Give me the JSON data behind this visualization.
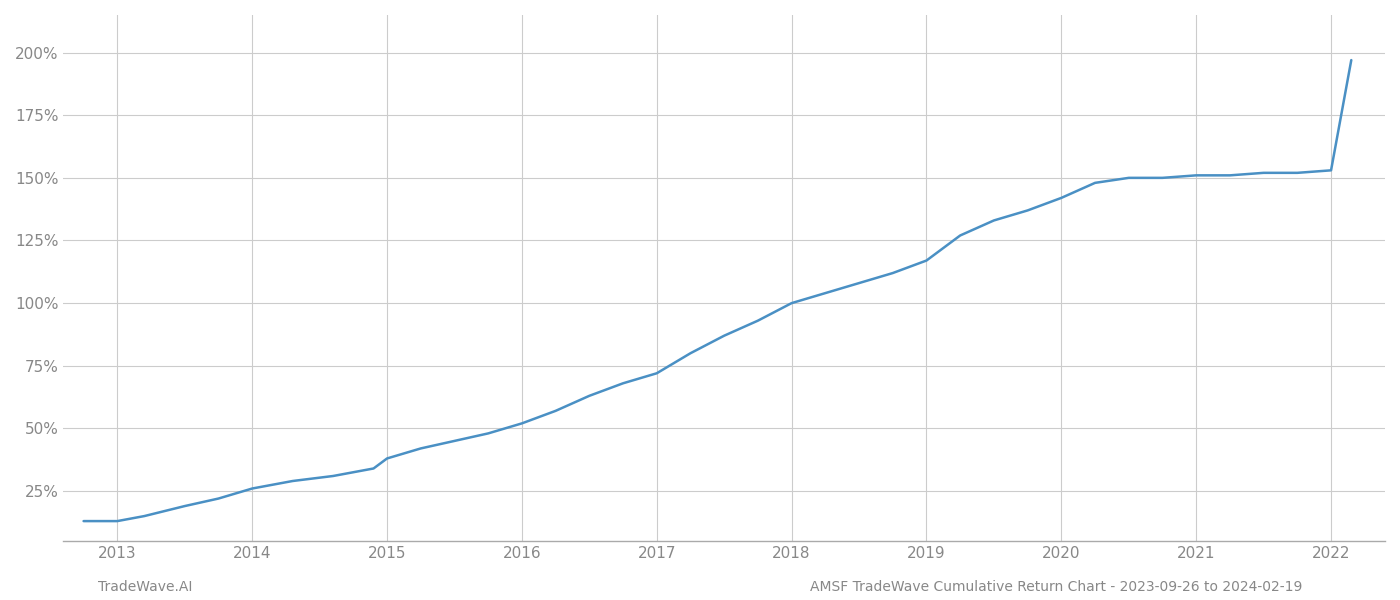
{
  "title": "",
  "footer_left": "TradeWave.AI",
  "footer_right": "AMSF TradeWave Cumulative Return Chart - 2023-09-26 to 2024-02-19",
  "line_color": "#4a90c4",
  "background_color": "#ffffff",
  "grid_color": "#cccccc",
  "x_values": [
    2012.75,
    2013.0,
    2013.2,
    2013.5,
    2013.75,
    2014.0,
    2014.3,
    2014.6,
    2014.9,
    2015.0,
    2015.25,
    2015.5,
    2015.75,
    2016.0,
    2016.25,
    2016.5,
    2016.75,
    2017.0,
    2017.25,
    2017.5,
    2017.75,
    2018.0,
    2018.25,
    2018.5,
    2018.75,
    2019.0,
    2019.25,
    2019.5,
    2019.75,
    2020.0,
    2020.25,
    2020.5,
    2020.75,
    2021.0,
    2021.25,
    2021.5,
    2021.75,
    2022.0,
    2022.15
  ],
  "y_values": [
    13,
    13,
    15,
    19,
    22,
    26,
    29,
    31,
    34,
    38,
    42,
    45,
    48,
    52,
    57,
    63,
    68,
    72,
    80,
    87,
    93,
    100,
    104,
    108,
    112,
    117,
    127,
    133,
    137,
    142,
    148,
    150,
    150,
    151,
    151,
    152,
    152,
    153,
    197
  ],
  "xlim": [
    2012.6,
    2022.4
  ],
  "ylim": [
    5,
    215
  ],
  "yticks": [
    25,
    50,
    75,
    100,
    125,
    150,
    175,
    200
  ],
  "ytick_labels": [
    "25%",
    "50%",
    "75%",
    "100%",
    "125%",
    "150%",
    "175%",
    "200%"
  ],
  "xticks": [
    2013,
    2014,
    2015,
    2016,
    2017,
    2018,
    2019,
    2020,
    2021,
    2022
  ],
  "line_width": 1.8,
  "footer_fontsize": 10,
  "tick_fontsize": 11,
  "axis_color": "#888888",
  "tick_color": "#888888",
  "spine_color": "#aaaaaa"
}
